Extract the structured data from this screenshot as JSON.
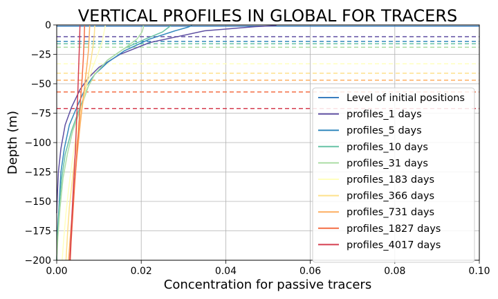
{
  "chart_data": {
    "type": "line",
    "title": "VERTICAL PROFILES IN GLOBAL FOR TRACERS",
    "xlabel": "Concentration for passive tracers",
    "ylabel": "Depth (m)",
    "xlim": [
      0.0,
      0.1
    ],
    "ylim": [
      -200,
      0
    ],
    "xticks": [
      "0.00",
      "0.02",
      "0.04",
      "0.06",
      "0.08",
      "0.10"
    ],
    "yticks": [
      "0",
      "−25",
      "−50",
      "−75",
      "−100",
      "−125",
      "−150",
      "−175",
      "−200"
    ],
    "grid": true,
    "legend_placement": "right",
    "initial_level": {
      "name": "Level of initial positions",
      "color": "#3a7ebf",
      "depth": -1
    },
    "series": [
      {
        "name": "profiles_1 days",
        "color": "#5e4fa2",
        "mean_depth": -10,
        "points": [
          [
            0.052,
            -0.5
          ],
          [
            0.047,
            -1.5
          ],
          [
            0.035,
            -5
          ],
          [
            0.022,
            -15
          ],
          [
            0.015,
            -25
          ],
          [
            0.01,
            -36
          ],
          [
            0.0075,
            -45
          ],
          [
            0.0055,
            -55
          ],
          [
            0.0035,
            -70
          ],
          [
            0.002,
            -85
          ],
          [
            0.001,
            -105
          ],
          [
            0.0004,
            -125
          ],
          [
            0.0001,
            -150
          ],
          [
            0.0,
            -160
          ]
        ]
      },
      {
        "name": "profiles_5 days",
        "color": "#3288bd",
        "mean_depth": -14,
        "points": [
          [
            0.032,
            -0.5
          ],
          [
            0.031,
            -2
          ],
          [
            0.028,
            -5
          ],
          [
            0.022,
            -12
          ],
          [
            0.016,
            -22
          ],
          [
            0.012,
            -32
          ],
          [
            0.009,
            -42
          ],
          [
            0.007,
            -52
          ],
          [
            0.005,
            -68
          ],
          [
            0.003,
            -85
          ],
          [
            0.0018,
            -105
          ],
          [
            0.001,
            -125
          ],
          [
            0.0006,
            -150
          ],
          [
            0.0002,
            -175
          ],
          [
            0.0,
            -200
          ]
        ]
      },
      {
        "name": "profiles_10 days",
        "color": "#66c2a5",
        "mean_depth": -16,
        "points": [
          [
            0.027,
            -0.5
          ],
          [
            0.0265,
            -2
          ],
          [
            0.025,
            -6
          ],
          [
            0.021,
            -12
          ],
          [
            0.016,
            -20
          ],
          [
            0.012,
            -30
          ],
          [
            0.009,
            -42
          ],
          [
            0.0075,
            -52
          ],
          [
            0.0055,
            -70
          ],
          [
            0.0035,
            -90
          ],
          [
            0.002,
            -110
          ],
          [
            0.0012,
            -130
          ],
          [
            0.0006,
            -155
          ],
          [
            0.0002,
            -180
          ],
          [
            0.0,
            -200
          ]
        ]
      },
      {
        "name": "profiles_31 days",
        "color": "#abdda4",
        "mean_depth": -19,
        "points": [
          [
            0.0205,
            -0.5
          ],
          [
            0.0205,
            -2
          ],
          [
            0.0202,
            -6
          ],
          [
            0.019,
            -12
          ],
          [
            0.016,
            -20
          ],
          [
            0.012,
            -30
          ],
          [
            0.009,
            -42
          ],
          [
            0.0075,
            -52
          ],
          [
            0.0058,
            -70
          ],
          [
            0.0038,
            -90
          ],
          [
            0.0025,
            -110
          ],
          [
            0.0015,
            -130
          ],
          [
            0.0008,
            -155
          ],
          [
            0.0003,
            -180
          ],
          [
            0.0,
            -200
          ]
        ]
      },
      {
        "name": "profiles_183 days",
        "color": "#ffffbf",
        "mean_depth": -33,
        "points": [
          [
            0.0115,
            -0.5
          ],
          [
            0.0112,
            -6
          ],
          [
            0.0108,
            -14
          ],
          [
            0.0098,
            -24
          ],
          [
            0.0085,
            -36
          ],
          [
            0.0072,
            -50
          ],
          [
            0.0062,
            -65
          ],
          [
            0.0052,
            -82
          ],
          [
            0.0043,
            -100
          ],
          [
            0.0035,
            -120
          ],
          [
            0.0028,
            -140
          ],
          [
            0.0022,
            -160
          ],
          [
            0.0017,
            -180
          ],
          [
            0.0013,
            -200
          ]
        ]
      },
      {
        "name": "profiles_366 days",
        "color": "#fee08b",
        "mean_depth": -41,
        "points": [
          [
            0.009,
            -0.5
          ],
          [
            0.0089,
            -8
          ],
          [
            0.0086,
            -18
          ],
          [
            0.0081,
            -30
          ],
          [
            0.0074,
            -44
          ],
          [
            0.0066,
            -58
          ],
          [
            0.0058,
            -75
          ],
          [
            0.005,
            -95
          ],
          [
            0.0042,
            -115
          ],
          [
            0.0036,
            -135
          ],
          [
            0.003,
            -155
          ],
          [
            0.0026,
            -175
          ],
          [
            0.0022,
            -200
          ]
        ]
      },
      {
        "name": "profiles_731 days",
        "color": "#fdae61",
        "mean_depth": -47,
        "points": [
          [
            0.0078,
            -0.5
          ],
          [
            0.0077,
            -10
          ],
          [
            0.0075,
            -22
          ],
          [
            0.0071,
            -36
          ],
          [
            0.0066,
            -52
          ],
          [
            0.006,
            -70
          ],
          [
            0.0054,
            -90
          ],
          [
            0.0048,
            -112
          ],
          [
            0.0042,
            -135
          ],
          [
            0.0037,
            -158
          ],
          [
            0.0032,
            -180
          ],
          [
            0.0028,
            -200
          ]
        ]
      },
      {
        "name": "profiles_1827 days",
        "color": "#f46d43",
        "mean_depth": -57,
        "points": [
          [
            0.0066,
            -0.5
          ],
          [
            0.0065,
            -12
          ],
          [
            0.0063,
            -28
          ],
          [
            0.006,
            -46
          ],
          [
            0.0056,
            -66
          ],
          [
            0.0052,
            -88
          ],
          [
            0.0047,
            -112
          ],
          [
            0.0042,
            -138
          ],
          [
            0.0038,
            -162
          ],
          [
            0.0034,
            -185
          ],
          [
            0.0032,
            -200
          ]
        ]
      },
      {
        "name": "profiles_4017 days",
        "color": "#d53e4f",
        "mean_depth": -71,
        "points": [
          [
            0.0055,
            -0.5
          ],
          [
            0.0054,
            -15
          ],
          [
            0.0052,
            -35
          ],
          [
            0.005,
            -58
          ],
          [
            0.0047,
            -82
          ],
          [
            0.0044,
            -108
          ],
          [
            0.004,
            -135
          ],
          [
            0.0036,
            -162
          ],
          [
            0.0033,
            -185
          ],
          [
            0.0031,
            -200
          ]
        ]
      }
    ]
  }
}
